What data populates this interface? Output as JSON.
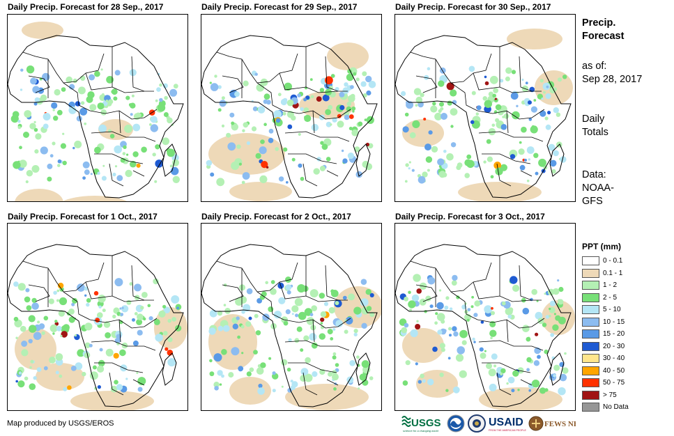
{
  "panels": [
    {
      "title": "Daily Precip. Forecast for 28  Sep., 2017"
    },
    {
      "title": "Daily Precip. Forecast for 29  Sep., 2017"
    },
    {
      "title": "Daily Precip. Forecast for 30  Sep., 2017"
    },
    {
      "title": "Daily Precip. Forecast for 1  Oct., 2017"
    },
    {
      "title": "Daily Precip. Forecast for 2  Oct., 2017"
    },
    {
      "title": "Daily Precip. Forecast for 3  Oct., 2017"
    }
  ],
  "side": {
    "heading_line1": "Precip.",
    "heading_line2": "Forecast",
    "asof_line1": "as of:",
    "asof_line2": "Sep 28, 2017",
    "totals_line1": "Daily",
    "totals_line2": "Totals",
    "data_line1": "Data:",
    "data_line2": "NOAA-",
    "data_line3": "GFS"
  },
  "legend": {
    "title": "PPT (mm)",
    "items": [
      {
        "label": "0 - 0.1",
        "color": "#ffffff"
      },
      {
        "label": "0.1 - 1",
        "color": "#eed9b8"
      },
      {
        "label": "1 - 2",
        "color": "#b4f0b4"
      },
      {
        "label": "2 - 5",
        "color": "#78e078"
      },
      {
        "label": "5 - 10",
        "color": "#b4e6f5"
      },
      {
        "label": "10 - 15",
        "color": "#8cbcf0"
      },
      {
        "label": "15 - 20",
        "color": "#5a9ae6"
      },
      {
        "label": "20 - 30",
        "color": "#1e5ad2"
      },
      {
        "label": "30 - 40",
        "color": "#ffe68c"
      },
      {
        "label": "40 - 50",
        "color": "#ffa500"
      },
      {
        "label": "50 - 75",
        "color": "#ff3200"
      },
      {
        "label": "> 75",
        "color": "#a01414"
      },
      {
        "label": "No Data",
        "color": "#969696"
      }
    ]
  },
  "credit": "Map produced by USGS/EROS",
  "logos": {
    "usgs": "USGS",
    "usgs_tag": "science for a changing world",
    "usaid": "USAID",
    "usaid_tag": "FROM THE AMERICAN PEOPLE",
    "fews": "FEWS NET"
  }
}
